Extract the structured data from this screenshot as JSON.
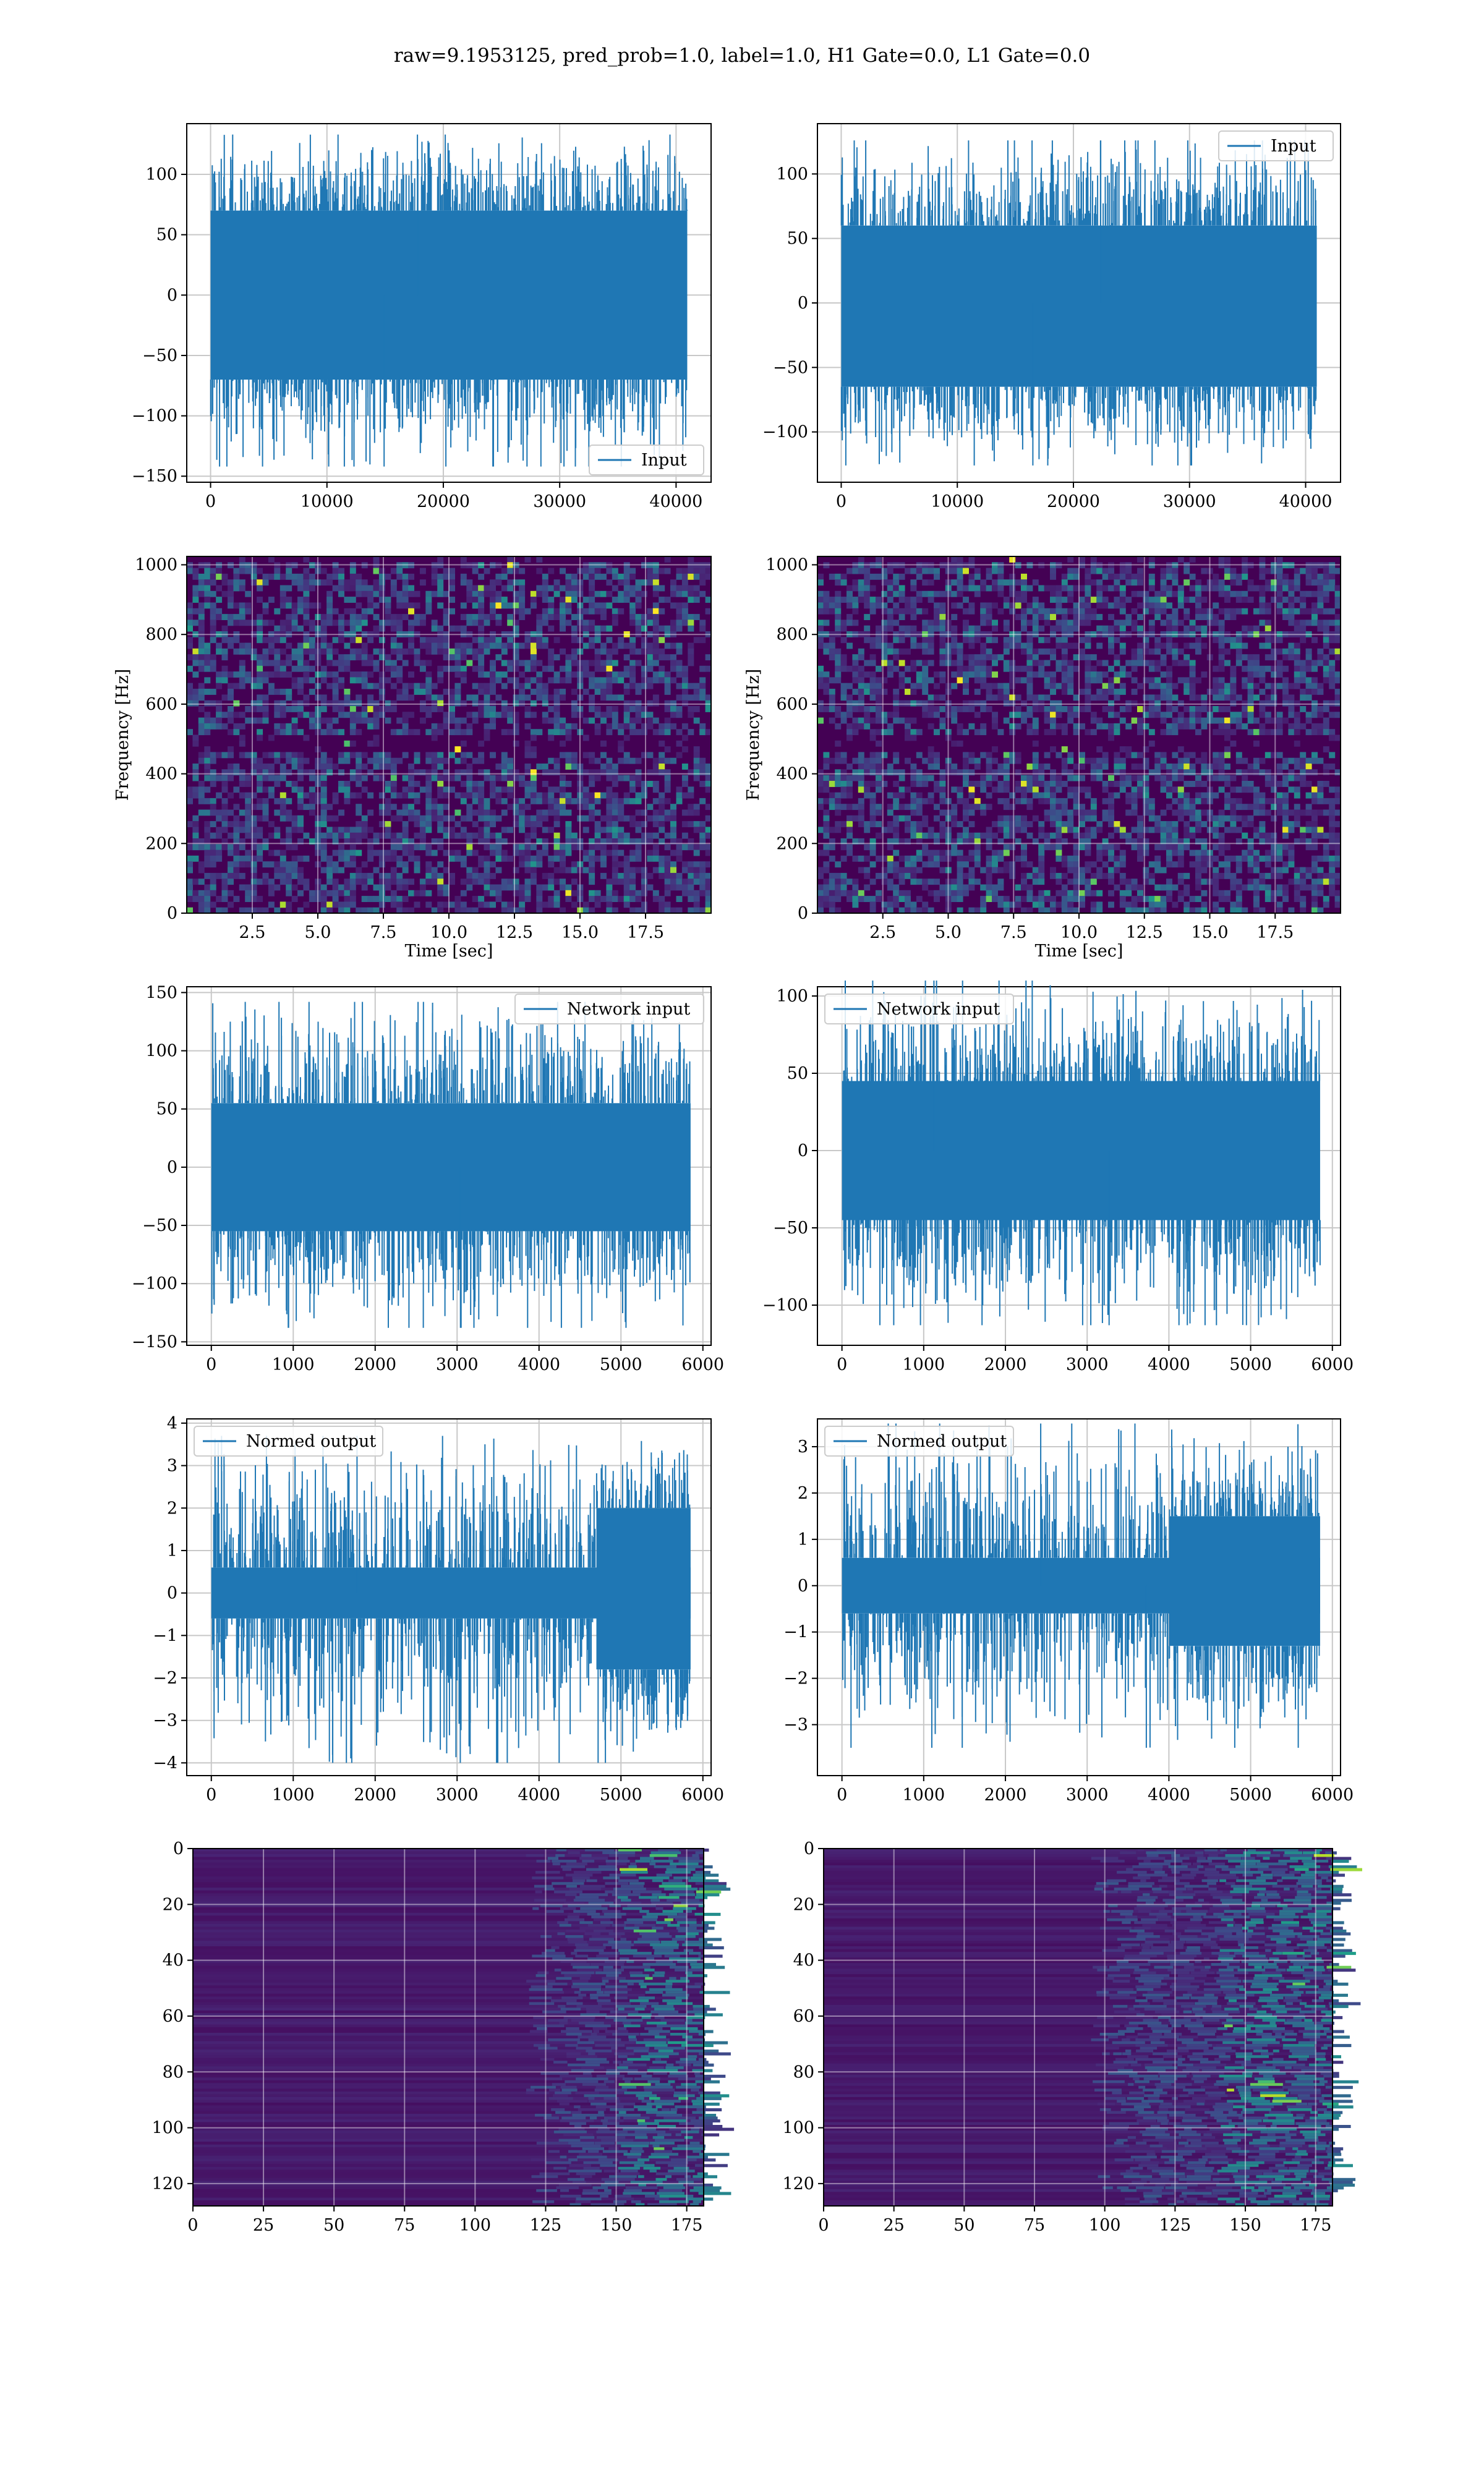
{
  "figure": {
    "suptitle": "raw=9.1953125, pred_prob=1.0, label=1.0, H1 Gate=0.0, L1 Gate=0.0"
  },
  "colors": {
    "line": "#1f77b4",
    "grid": "#c8c8c8",
    "spec_background": "#440154",
    "spec_dark": "#3b0f6f",
    "spec_mid": "#31688e",
    "spec_teal": "#21918c",
    "spec_green": "#35b779",
    "spec_yellow": "#fde725"
  },
  "chart_data": [
    {
      "id": "input-left",
      "type": "line",
      "row": 0,
      "col": 0,
      "series": [
        {
          "name": "Input",
          "style": "dense noise band",
          "n_samples": 40960,
          "band": [
            -70,
            70
          ],
          "peak_max": 133,
          "peak_min": -142
        }
      ],
      "legend": "lower right",
      "xlim": [
        -2048,
        43008
      ],
      "ylim": [
        -155,
        142
      ],
      "xticks": [
        0,
        10000,
        20000,
        30000,
        40000
      ],
      "xtick_labels": [
        "0",
        "10000",
        "20000",
        "30000",
        "40000"
      ],
      "yticks": [
        -150,
        -100,
        -50,
        0,
        50,
        100
      ],
      "ytick_labels": [
        "−150",
        "−100",
        "−50",
        "0",
        "50",
        "100"
      ],
      "grid": true
    },
    {
      "id": "input-right",
      "type": "line",
      "row": 0,
      "col": 1,
      "series": [
        {
          "name": "Input",
          "style": "dense noise band",
          "n_samples": 40960,
          "band": [
            -65,
            60
          ],
          "peak_max": 126,
          "peak_min": -126
        }
      ],
      "legend": "upper right",
      "xlim": [
        -2048,
        43008
      ],
      "ylim": [
        -139,
        139
      ],
      "xticks": [
        0,
        10000,
        20000,
        30000,
        40000
      ],
      "xtick_labels": [
        "0",
        "10000",
        "20000",
        "30000",
        "40000"
      ],
      "yticks": [
        -100,
        -50,
        0,
        50,
        100
      ],
      "ytick_labels": [
        "−100",
        "−50",
        "0",
        "50",
        "100"
      ],
      "grid": true
    },
    {
      "id": "spectrogram-left",
      "type": "heatmap",
      "row": 1,
      "col": 0,
      "xlabel": "Time [sec]",
      "ylabel": "Frequency [Hz]",
      "xlim": [
        0,
        20
      ],
      "ylim": [
        0,
        1024
      ],
      "xticks": [
        2.5,
        5.0,
        7.5,
        10.0,
        12.5,
        15.0,
        17.5
      ],
      "xtick_labels": [
        "2.5",
        "5.0",
        "7.5",
        "10.0",
        "12.5",
        "15.0",
        "17.5"
      ],
      "yticks": [
        0,
        200,
        400,
        600,
        800,
        1000
      ],
      "ytick_labels": [
        "0",
        "200",
        "400",
        "600",
        "800",
        "1000"
      ],
      "colormap": "viridis",
      "dark_band_hz": 500,
      "grid": true
    },
    {
      "id": "spectrogram-right",
      "type": "heatmap",
      "row": 1,
      "col": 1,
      "xlabel": "Time [sec]",
      "ylabel": "Frequency [Hz]",
      "xlim": [
        0,
        20
      ],
      "ylim": [
        0,
        1024
      ],
      "xticks": [
        2.5,
        5.0,
        7.5,
        10.0,
        12.5,
        15.0,
        17.5
      ],
      "xtick_labels": [
        "2.5",
        "5.0",
        "7.5",
        "10.0",
        "12.5",
        "15.0",
        "17.5"
      ],
      "yticks": [
        0,
        200,
        400,
        600,
        800,
        1000
      ],
      "ytick_labels": [
        "0",
        "200",
        "400",
        "600",
        "800",
        "1000"
      ],
      "colormap": "viridis",
      "dark_band_hz": 500,
      "grid": true
    },
    {
      "id": "network-input-left",
      "type": "line",
      "row": 2,
      "col": 0,
      "series": [
        {
          "name": "Network input",
          "style": "dense noise band",
          "n_samples": 5850,
          "band": [
            -55,
            55
          ],
          "peak_max": 142,
          "peak_min": -138
        }
      ],
      "legend": "upper right",
      "xlim": [
        -300,
        6100
      ],
      "ylim": [
        -153,
        155
      ],
      "xticks": [
        0,
        1000,
        2000,
        3000,
        4000,
        5000,
        6000
      ],
      "xtick_labels": [
        "0",
        "1000",
        "2000",
        "3000",
        "4000",
        "5000",
        "6000"
      ],
      "yticks": [
        -150,
        -100,
        -50,
        0,
        50,
        100,
        150
      ],
      "ytick_labels": [
        "−150",
        "−100",
        "−50",
        "0",
        "50",
        "100",
        "150"
      ],
      "grid": true
    },
    {
      "id": "network-input-right",
      "type": "line",
      "row": 2,
      "col": 1,
      "series": [
        {
          "name": "Network input",
          "style": "dense noise band",
          "n_samples": 5850,
          "band": [
            -45,
            45
          ],
          "peak_max": 110,
          "peak_min": -113
        }
      ],
      "legend": "upper left",
      "xlim": [
        -300,
        6100
      ],
      "ylim": [
        -126,
        106
      ],
      "xticks": [
        0,
        1000,
        2000,
        3000,
        4000,
        5000,
        6000
      ],
      "xtick_labels": [
        "0",
        "1000",
        "2000",
        "3000",
        "4000",
        "5000",
        "6000"
      ],
      "yticks": [
        -100,
        -50,
        0,
        50,
        100
      ],
      "ytick_labels": [
        "−100",
        "−50",
        "0",
        "50",
        "100"
      ],
      "grid": true
    },
    {
      "id": "normed-output-left",
      "type": "line",
      "row": 3,
      "col": 0,
      "series": [
        {
          "name": "Normed output",
          "style": "noise band with burst",
          "n_samples": 5850,
          "band": [
            -0.6,
            0.6
          ],
          "burst_start": 4700,
          "burst_band": [
            -1.8,
            2.0
          ],
          "peak_max": 3.7,
          "peak_min": -4.0
        }
      ],
      "legend": "upper left",
      "xlim": [
        -300,
        6100
      ],
      "ylim": [
        -4.3,
        4.1
      ],
      "xticks": [
        0,
        1000,
        2000,
        3000,
        4000,
        5000,
        6000
      ],
      "xtick_labels": [
        "0",
        "1000",
        "2000",
        "3000",
        "4000",
        "5000",
        "6000"
      ],
      "yticks": [
        -4,
        -3,
        -2,
        -1,
        0,
        1,
        2,
        3,
        4
      ],
      "ytick_labels": [
        "−4",
        "−3",
        "−2",
        "−1",
        "0",
        "1",
        "2",
        "3",
        "4"
      ],
      "grid": true
    },
    {
      "id": "normed-output-right",
      "type": "line",
      "row": 3,
      "col": 1,
      "series": [
        {
          "name": "Normed output",
          "style": "noise band with burst",
          "n_samples": 5850,
          "band": [
            -0.6,
            0.6
          ],
          "burst_start": 4000,
          "burst_band": [
            -1.3,
            1.5
          ],
          "peak_max": 3.5,
          "peak_min": -3.5
        }
      ],
      "legend": "upper left",
      "xlim": [
        -300,
        6100
      ],
      "ylim": [
        -4.1,
        3.6
      ],
      "xticks": [
        0,
        1000,
        2000,
        3000,
        4000,
        5000,
        6000
      ],
      "xtick_labels": [
        "0",
        "1000",
        "2000",
        "3000",
        "4000",
        "5000",
        "6000"
      ],
      "yticks": [
        -3,
        -2,
        -1,
        0,
        1,
        2,
        3
      ],
      "ytick_labels": [
        "−3",
        "−2",
        "−1",
        "0",
        "1",
        "2",
        "3"
      ],
      "grid": true
    },
    {
      "id": "feature-map-left",
      "type": "heatmap",
      "row": 4,
      "col": 0,
      "xlim": [
        0,
        181
      ],
      "ylim": [
        128,
        0
      ],
      "xticks": [
        0,
        25,
        50,
        75,
        100,
        125,
        150,
        175
      ],
      "xtick_labels": [
        "0",
        "25",
        "50",
        "75",
        "100",
        "125",
        "150",
        "175"
      ],
      "yticks": [
        0,
        20,
        40,
        60,
        80,
        100,
        120
      ],
      "ytick_labels": [
        "0",
        "20",
        "40",
        "60",
        "80",
        "100",
        "120"
      ],
      "colormap": "viridis",
      "activity_from": 118,
      "bright_from": 150,
      "grid": true
    },
    {
      "id": "feature-map-right",
      "type": "heatmap",
      "row": 4,
      "col": 1,
      "xlim": [
        0,
        181
      ],
      "ylim": [
        128,
        0
      ],
      "xticks": [
        0,
        25,
        50,
        75,
        100,
        125,
        150,
        175
      ],
      "xtick_labels": [
        "0",
        "25",
        "50",
        "75",
        "100",
        "125",
        "150",
        "175"
      ],
      "yticks": [
        0,
        20,
        40,
        60,
        80,
        100,
        120
      ],
      "ytick_labels": [
        "0",
        "20",
        "40",
        "60",
        "80",
        "100",
        "120"
      ],
      "colormap": "viridis",
      "activity_from": 95,
      "bright_from": 140,
      "grid": true
    }
  ]
}
